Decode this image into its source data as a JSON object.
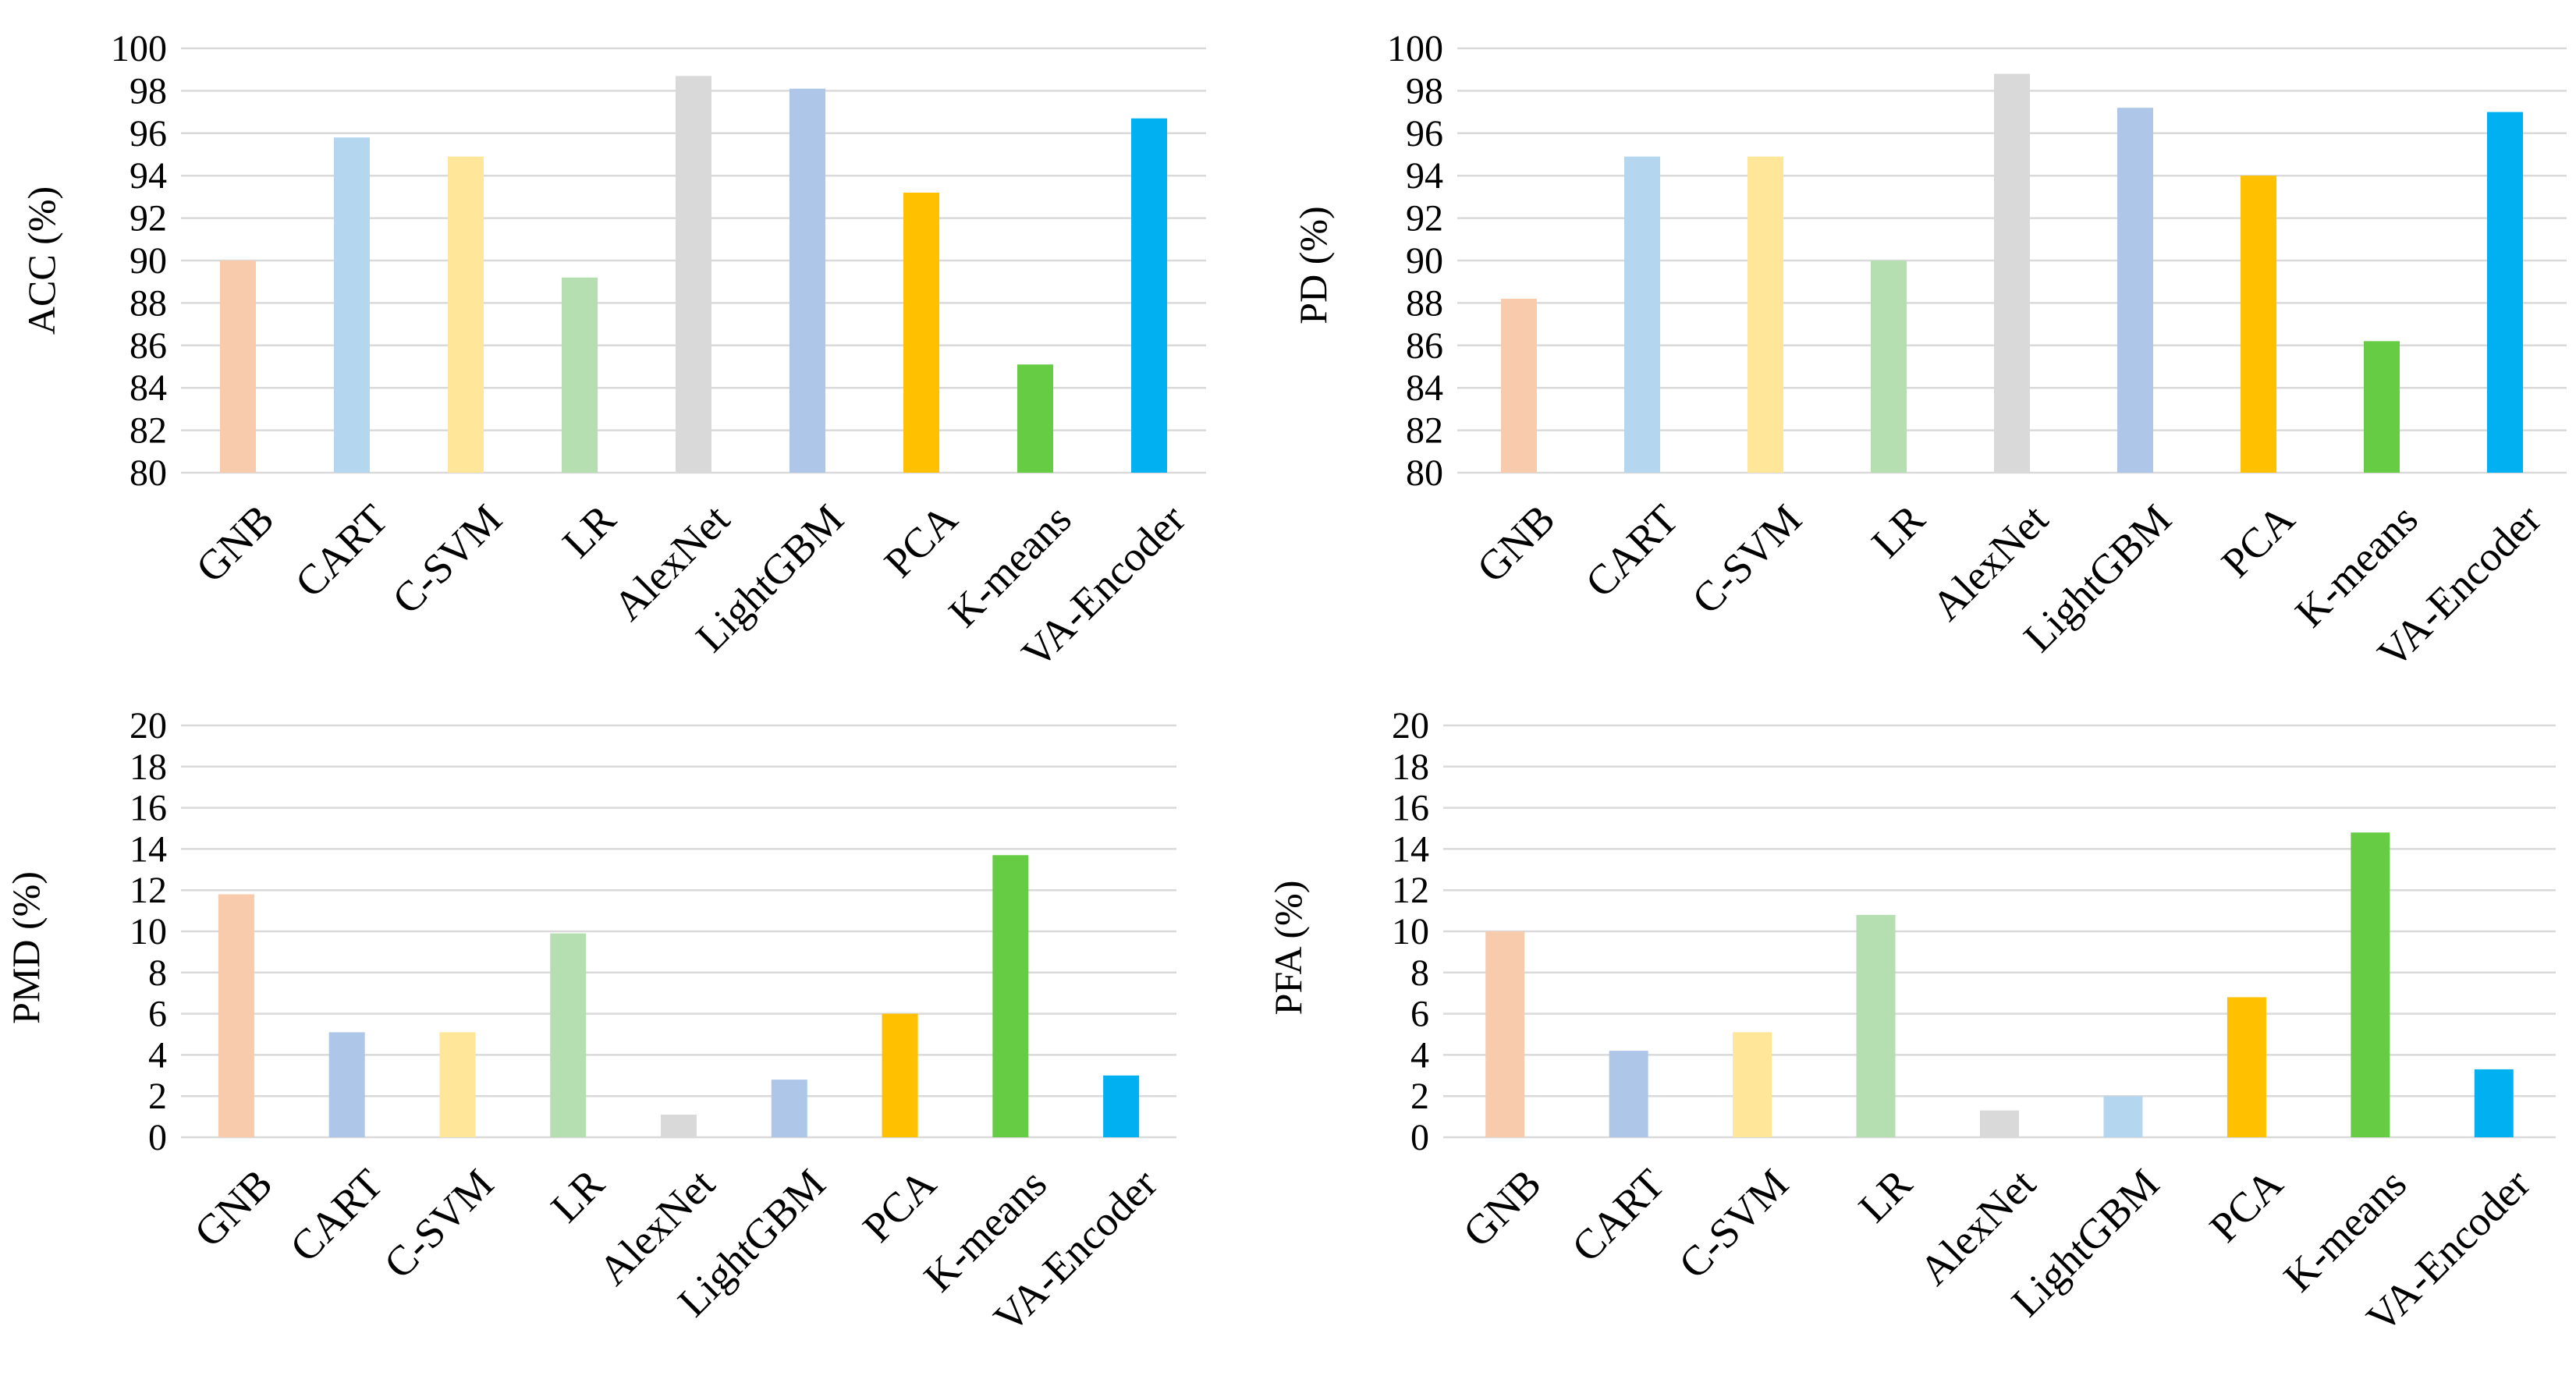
{
  "chart_data": [
    {
      "type": "bar",
      "ylabel": "ACC (%)",
      "ylim": [
        80,
        100
      ],
      "yticks": [
        80,
        82,
        84,
        86,
        88,
        90,
        92,
        94,
        96,
        98,
        100
      ],
      "grid": true,
      "categories": [
        "GNB",
        "CART",
        "C-SVM",
        "LR",
        "AlexNet",
        "LightGBM",
        "PCA",
        "K-means",
        "VA-Encoder"
      ],
      "values": [
        90.0,
        95.8,
        94.9,
        89.2,
        98.7,
        98.1,
        93.2,
        85.1,
        96.7
      ],
      "colors": [
        "#f8cbad",
        "#b4d7ef",
        "#ffe699",
        "#b6dfb1",
        "#d9d9d9",
        "#aec7e8",
        "#ffc000",
        "#66cc44",
        "#00b0f0"
      ]
    },
    {
      "type": "bar",
      "ylabel": "PD (%)",
      "ylim": [
        80,
        100
      ],
      "yticks": [
        80,
        82,
        84,
        86,
        88,
        90,
        92,
        94,
        96,
        98,
        100
      ],
      "grid": true,
      "categories": [
        "GNB",
        "CART",
        "C-SVM",
        "LR",
        "AlexNet",
        "LightGBM",
        "PCA",
        "K-means",
        "VA-Encoder"
      ],
      "values": [
        88.2,
        94.9,
        94.9,
        90.0,
        98.8,
        97.2,
        94.0,
        86.2,
        97.0
      ],
      "colors": [
        "#f8cbad",
        "#b4d7ef",
        "#ffe699",
        "#b6dfb1",
        "#d9d9d9",
        "#aec7e8",
        "#ffc000",
        "#66cc44",
        "#00b0f0"
      ]
    },
    {
      "type": "bar",
      "ylabel": "PMD (%)",
      "ylim": [
        0,
        20
      ],
      "yticks": [
        0,
        2,
        4,
        6,
        8,
        10,
        12,
        14,
        16,
        18,
        20
      ],
      "grid": true,
      "categories": [
        "GNB",
        "CART",
        "C-SVM",
        "LR",
        "AlexNet",
        "LightGBM",
        "PCA",
        "K-means",
        "VA-Encoder"
      ],
      "values": [
        11.8,
        5.1,
        5.1,
        9.9,
        1.1,
        2.8,
        6.0,
        13.7,
        3.0
      ],
      "colors": [
        "#f8cbad",
        "#aec7e8",
        "#ffe699",
        "#b6dfb1",
        "#d9d9d9",
        "#aec7e8",
        "#ffc000",
        "#66cc44",
        "#00b0f0"
      ]
    },
    {
      "type": "bar",
      "ylabel": "PFA (%)",
      "ylim": [
        0,
        20
      ],
      "yticks": [
        0,
        2,
        4,
        6,
        8,
        10,
        12,
        14,
        16,
        18,
        20
      ],
      "grid": true,
      "categories": [
        "GNB",
        "CART",
        "C-SVM",
        "LR",
        "AlexNet",
        "LightGBM",
        "PCA",
        "K-means",
        "VA-Encoder"
      ],
      "values": [
        10.0,
        4.2,
        5.1,
        10.8,
        1.3,
        2.0,
        6.8,
        14.8,
        3.3
      ],
      "colors": [
        "#f8cbad",
        "#aec7e8",
        "#ffe699",
        "#b6dfb1",
        "#d9d9d9",
        "#b4d7ef",
        "#ffc000",
        "#66cc44",
        "#00b0f0"
      ]
    }
  ]
}
